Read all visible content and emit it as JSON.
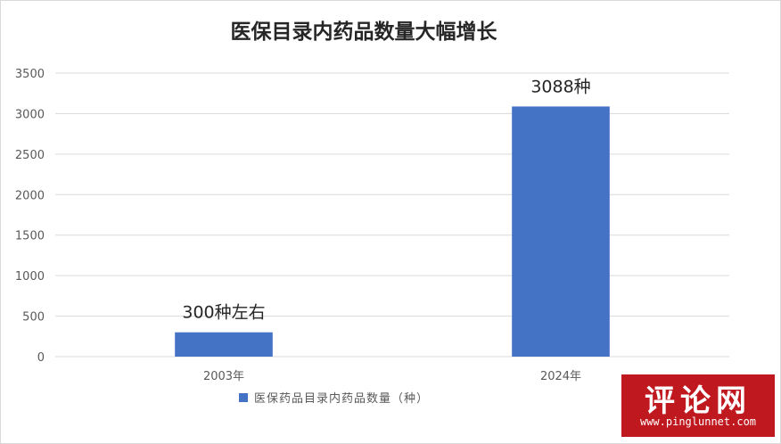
{
  "chart_data": {
    "type": "bar",
    "title": "医保目录内药品数量大幅增长",
    "categories": [
      "2003年",
      "2024年"
    ],
    "series": [
      {
        "name": "医保药品目录内药品数量（种）",
        "values": [
          300,
          3088
        ],
        "color": "#4472c4",
        "data_labels": [
          "300种左右",
          "3088种"
        ]
      }
    ],
    "y_ticks": [
      0,
      500,
      1000,
      1500,
      2000,
      2500,
      3000,
      3500
    ],
    "ylim": [
      0,
      3500
    ],
    "grid": true,
    "legend_position": "bottom",
    "xlabel": "",
    "ylabel": ""
  },
  "watermark": {
    "title": "评论网",
    "url": "www.pinglunnet.com"
  },
  "colors": {
    "bar": "#4472c4",
    "gridline": "#d9d9d9",
    "watermark_bg": "#c0181f"
  }
}
